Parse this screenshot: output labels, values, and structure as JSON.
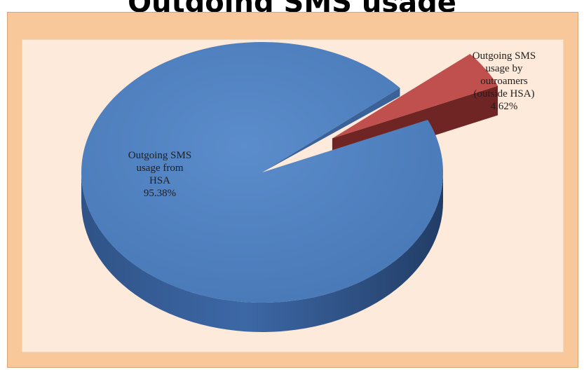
{
  "chart_data": {
    "type": "pie",
    "title": "Outgoing SMS usage",
    "style": "3d-exploded",
    "slices": [
      {
        "label_lines": [
          "Outgoing SMS",
          "usage from",
          "HSA",
          "95.38%"
        ],
        "value": 95.38,
        "color": "#4f81bd"
      },
      {
        "label_lines": [
          "Outgoing SMS",
          "usage by",
          "outroamers",
          "(outside HSA)",
          "4.62%"
        ],
        "value": 4.62,
        "color": "#c0504d"
      }
    ],
    "colors": {
      "frame": "#f8c89b",
      "plot_area": "#fdeadb"
    }
  }
}
